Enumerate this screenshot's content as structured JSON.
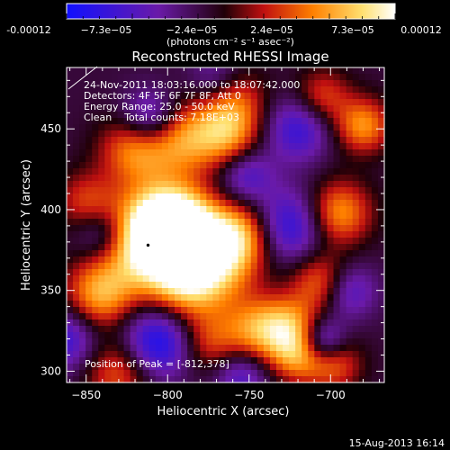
{
  "colorbar": {
    "tick_labels": [
      "-0.00012",
      "−7.3e−05",
      "−2.4e−05",
      "2.4e−05",
      "7.3e−05",
      "0.00012"
    ],
    "unit_label": "(photons cm⁻² s⁻¹ asec⁻²)",
    "range": [
      -0.00012,
      0.00012
    ],
    "colors": [
      "#1010ff",
      "#6a1aa8",
      "#200008",
      "#c01010",
      "#ff8000",
      "#ffe070",
      "#ffffff"
    ]
  },
  "chart_data": {
    "type": "heatmap",
    "title": "Reconstructed RHESSI Image",
    "xlabel": "Heliocentric X (arcsec)",
    "ylabel": "Heliocentric Y (arcsec)",
    "xlim": [
      -862,
      -667
    ],
    "ylim": [
      293,
      488
    ],
    "x_ticks": [
      -850,
      -800,
      -750,
      -700
    ],
    "y_ticks": [
      300,
      350,
      400,
      450
    ],
    "x_tick_labels": [
      "−850",
      "−800",
      "−750",
      "−700"
    ],
    "y_tick_labels": [
      "300",
      "350",
      "400",
      "450"
    ],
    "info_lines": [
      "24-Nov-2011 18:03:16.000 to 18:07:42.000",
      "Detectors: 4F 5F 6F 7F 8F, Att 0",
      "Energy Range: 25.0 - 50.0 keV",
      "Clean    Total counts: 7.18E+03"
    ],
    "peak_label": "Position of Peak = [-812,378]",
    "peak_position": [
      -812,
      378
    ],
    "blobs": [
      {
        "x": -813,
        "y": 378,
        "w": 20,
        "amp": 1.3
      },
      {
        "x": -800,
        "y": 395,
        "w": 17,
        "amp": 1.0
      },
      {
        "x": -788,
        "y": 385,
        "w": 16,
        "amp": 0.9
      },
      {
        "x": -770,
        "y": 367,
        "w": 18,
        "amp": 0.95
      },
      {
        "x": -755,
        "y": 385,
        "w": 14,
        "amp": 0.8
      },
      {
        "x": -790,
        "y": 353,
        "w": 16,
        "amp": 0.75
      },
      {
        "x": -820,
        "y": 438,
        "w": 15,
        "amp": 0.85
      },
      {
        "x": -792,
        "y": 445,
        "w": 16,
        "amp": 0.9
      },
      {
        "x": -763,
        "y": 445,
        "w": 14,
        "amp": 0.8
      },
      {
        "x": -760,
        "y": 468,
        "w": 14,
        "amp": 0.7
      },
      {
        "x": -842,
        "y": 347,
        "w": 15,
        "amp": 0.9
      },
      {
        "x": -830,
        "y": 300,
        "w": 15,
        "amp": 0.7
      },
      {
        "x": -745,
        "y": 325,
        "w": 14,
        "amp": 0.8
      },
      {
        "x": -725,
        "y": 328,
        "w": 13,
        "amp": 0.75
      },
      {
        "x": -705,
        "y": 355,
        "w": 13,
        "amp": 0.8
      },
      {
        "x": -695,
        "y": 398,
        "w": 14,
        "amp": 0.9
      },
      {
        "x": -680,
        "y": 452,
        "w": 12,
        "amp": 0.85
      },
      {
        "x": -705,
        "y": 470,
        "w": 12,
        "amp": 0.6
      },
      {
        "x": -850,
        "y": 405,
        "w": 13,
        "amp": 0.55
      },
      {
        "x": -720,
        "y": 310,
        "w": 12,
        "amp": 0.8
      },
      {
        "x": -698,
        "y": 305,
        "w": 12,
        "amp": 0.7
      },
      {
        "x": -775,
        "y": 318,
        "w": 14,
        "amp": 0.6
      },
      {
        "x": -806,
        "y": 318,
        "w": 16,
        "amp": -1.0
      },
      {
        "x": -810,
        "y": 455,
        "w": 13,
        "amp": -0.9
      },
      {
        "x": -725,
        "y": 390,
        "w": 16,
        "amp": -0.8
      },
      {
        "x": -720,
        "y": 450,
        "w": 14,
        "amp": -0.7
      },
      {
        "x": -862,
        "y": 320,
        "w": 14,
        "amp": -0.7
      },
      {
        "x": -840,
        "y": 385,
        "w": 12,
        "amp": -0.6
      },
      {
        "x": -752,
        "y": 422,
        "w": 12,
        "amp": -0.6
      },
      {
        "x": -690,
        "y": 350,
        "w": 12,
        "amp": -0.7
      },
      {
        "x": -705,
        "y": 318,
        "w": 10,
        "amp": -0.9
      },
      {
        "x": -755,
        "y": 298,
        "w": 12,
        "amp": -0.6
      },
      {
        "x": -770,
        "y": 480,
        "w": 12,
        "amp": -0.5
      }
    ]
  },
  "footer": {
    "timestamp": "15-Aug-2013 16:14"
  }
}
